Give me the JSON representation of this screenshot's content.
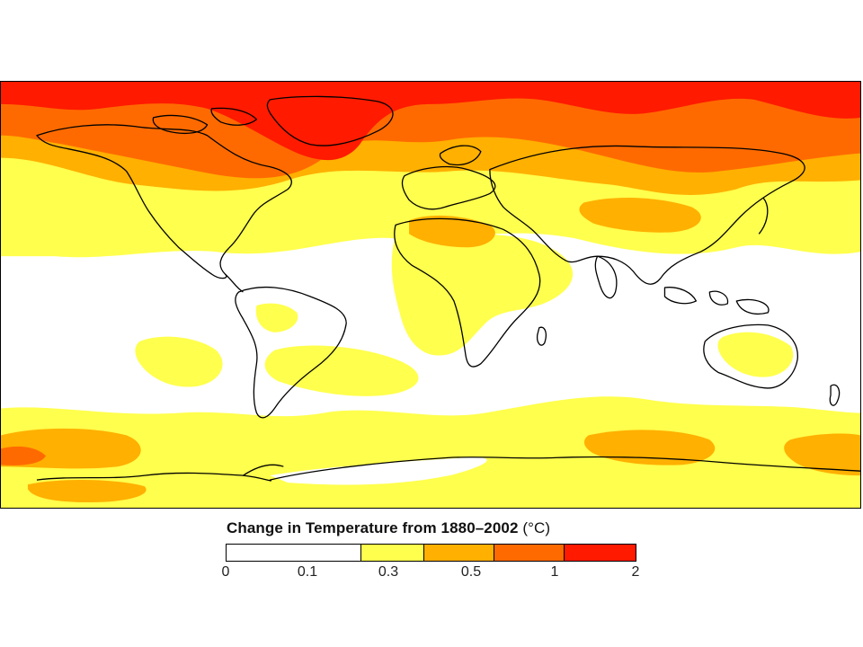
{
  "legend": {
    "title": "Change in Temperature from 1880–2002",
    "unit": "(°C)",
    "ticks": [
      "0",
      "0.1",
      "0.3",
      "0.5",
      "1",
      "2"
    ],
    "colors": {
      "band_0_0.1": "#ffffff",
      "band_0.1_0.3": "#ffff4d",
      "band_0.3_0.5": "#ffb000",
      "band_0.5_1": "#ff6a00",
      "band_1_2": "#ff1a00"
    }
  },
  "map": {
    "projection": "equirectangular",
    "coastline_color": "#000000"
  }
}
